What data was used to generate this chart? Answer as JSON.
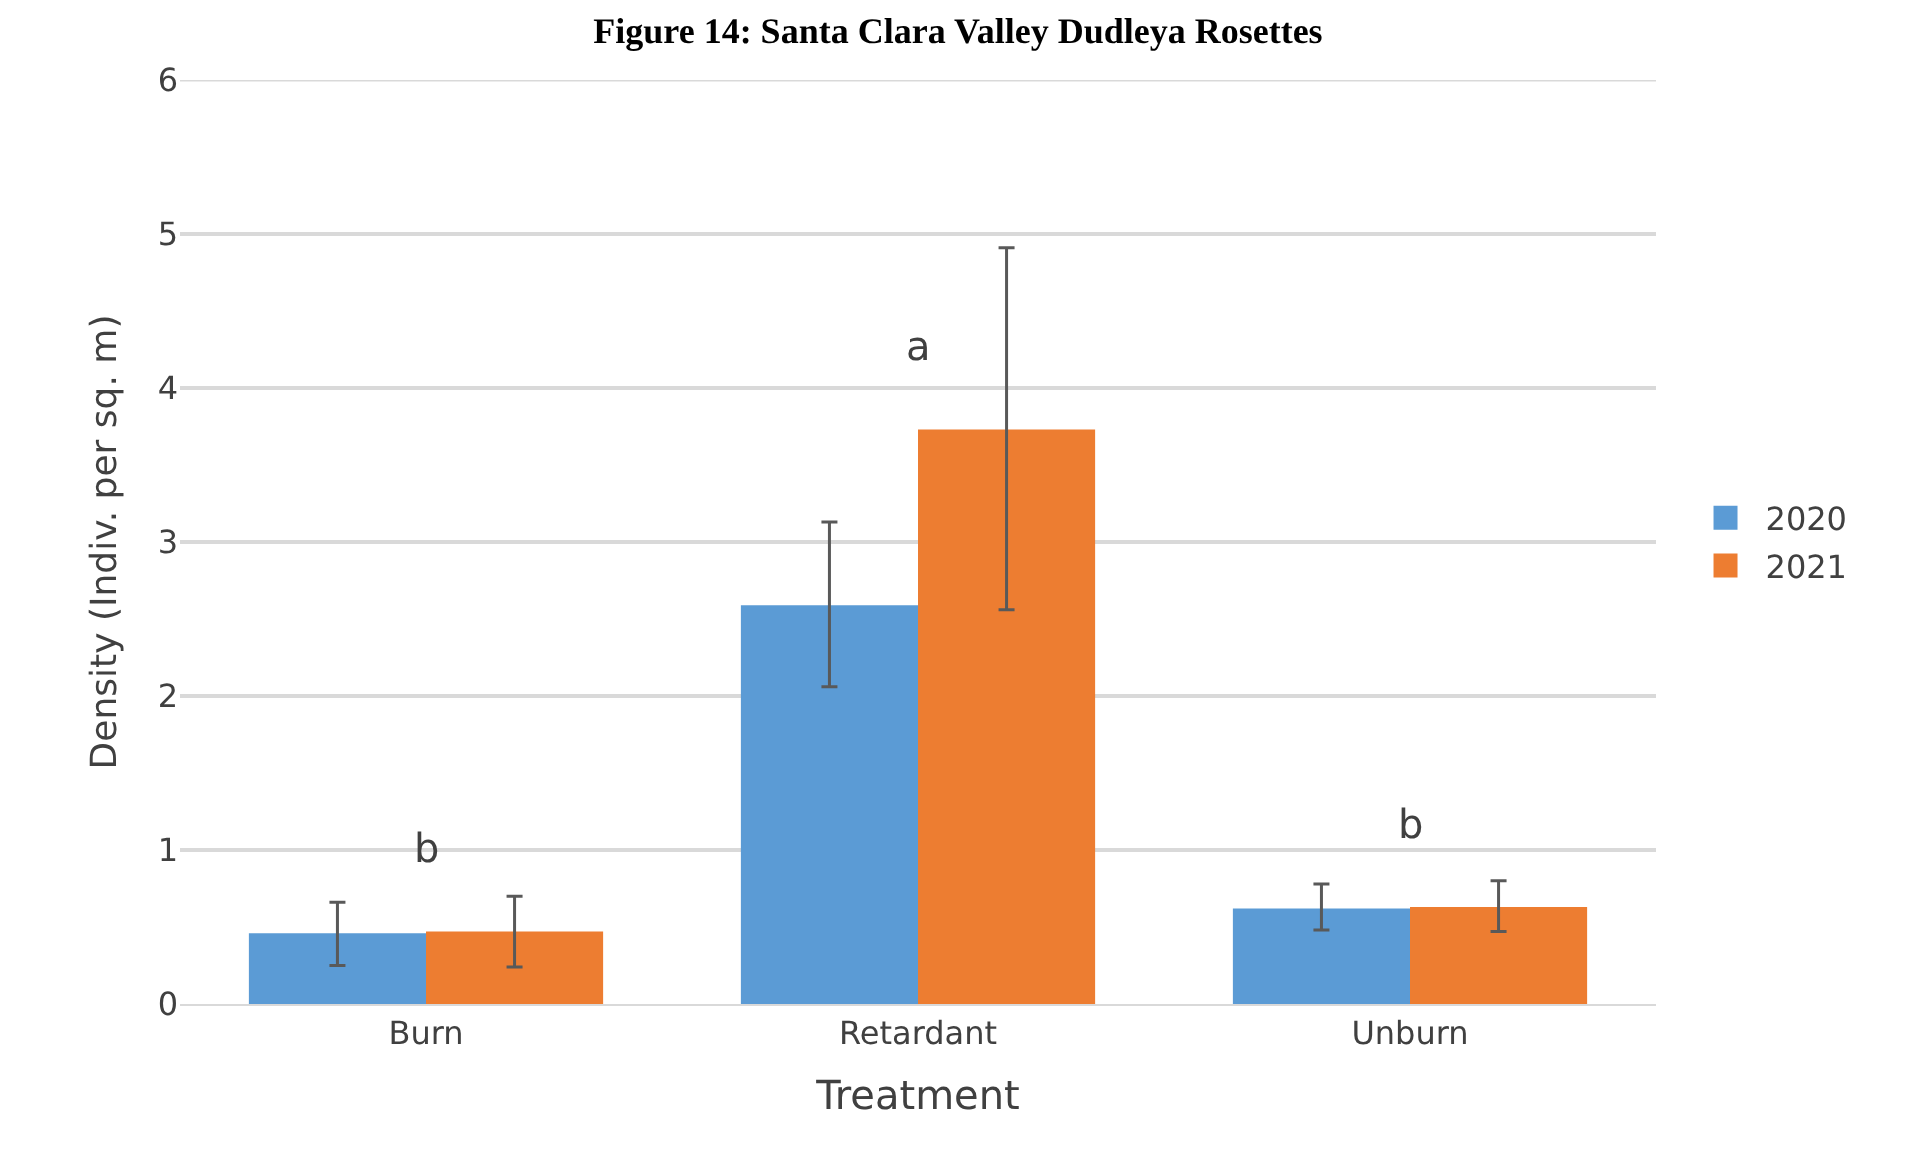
{
  "chart_data": {
    "type": "bar",
    "title": "Figure 14: Santa Clara Valley Dudleya Rosettes",
    "xlabel": "Treatment",
    "ylabel": "Density (Indiv. per sq. m)",
    "categories": [
      "Burn",
      "Retardant",
      "Unburn"
    ],
    "series": [
      {
        "name": "2020",
        "color": "#5b9bd5",
        "values": [
          0.46,
          2.59,
          0.62
        ],
        "errors": [
          [
            0.25,
            0.66
          ],
          [
            2.06,
            3.13
          ],
          [
            0.48,
            0.78
          ]
        ]
      },
      {
        "name": "2021",
        "color": "#ed7d31",
        "values": [
          0.47,
          3.73,
          0.63
        ],
        "errors": [
          [
            0.24,
            0.7
          ],
          [
            2.56,
            4.91
          ],
          [
            0.47,
            0.8
          ]
        ]
      }
    ],
    "ylim": [
      0,
      6
    ],
    "yticks": [
      0,
      1,
      2,
      3,
      4,
      5,
      6
    ],
    "grid": "y",
    "legend": "right",
    "annotations": [
      "b",
      "a",
      "b"
    ]
  }
}
